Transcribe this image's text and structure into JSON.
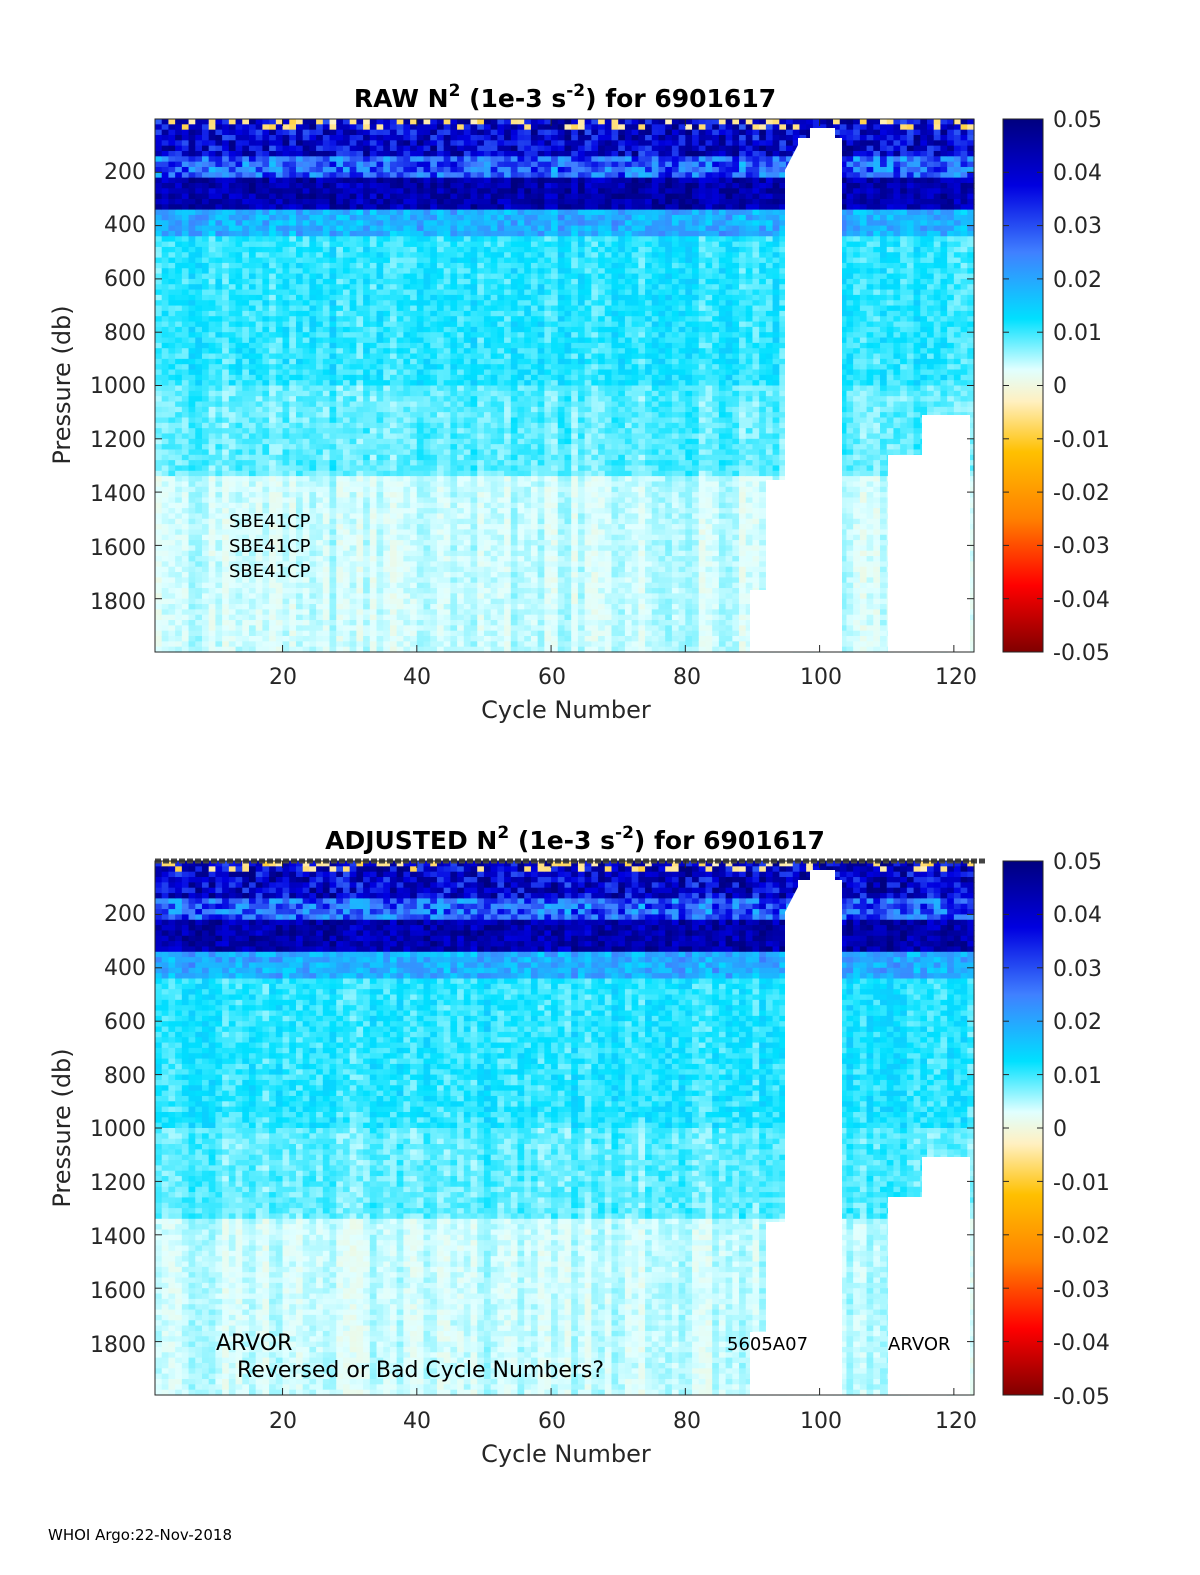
{
  "footer": "WHOI Argo:22-Nov-2018",
  "chart_data": [
    {
      "type": "heatmap",
      "title": {
        "pre": "RAW N",
        "sup1": "2",
        "mid": " (1e-3 s",
        "sup2": "-2",
        "post": ") for 6901617"
      },
      "xlabel": "Cycle Number",
      "ylabel": "Pressure (db)",
      "xlim": [
        1,
        123
      ],
      "ylim": [
        0,
        2000
      ],
      "x_ticks": [
        20,
        40,
        60,
        80,
        100,
        120
      ],
      "y_ticks": [
        200,
        400,
        600,
        800,
        1000,
        1200,
        1400,
        1600,
        1800
      ],
      "colorbar": {
        "range": [
          -0.05,
          0.05
        ],
        "ticks": [
          "0.05",
          "0.04",
          "0.03",
          "0.02",
          "0.01",
          "0",
          "-0.01",
          "-0.02",
          "-0.03",
          "-0.04",
          "-0.05"
        ]
      },
      "annotations": [
        "SBE41CP",
        "SBE41CP",
        "SBE41CP"
      ]
    },
    {
      "type": "heatmap",
      "title": {
        "pre": "ADJUSTED N",
        "sup1": "2",
        "mid": " (1e-3 s",
        "sup2": "-2",
        "post": ") for 6901617"
      },
      "xlabel": "Cycle Number",
      "ylabel": "Pressure (db)",
      "xlim": [
        1,
        123
      ],
      "ylim": [
        0,
        2000
      ],
      "x_ticks": [
        20,
        40,
        60,
        80,
        100,
        120
      ],
      "y_ticks": [
        200,
        400,
        600,
        800,
        1000,
        1200,
        1400,
        1600,
        1800
      ],
      "colorbar": {
        "range": [
          -0.05,
          0.05
        ],
        "ticks": [
          "0.05",
          "0.04",
          "0.03",
          "0.02",
          "0.01",
          "0",
          "-0.01",
          "-0.02",
          "-0.03",
          "-0.04",
          "-0.05"
        ]
      },
      "annotations": [
        "ARVOR",
        "Reversed or Bad Cycle Numbers?",
        "5605A07",
        "ARVOR"
      ]
    }
  ]
}
